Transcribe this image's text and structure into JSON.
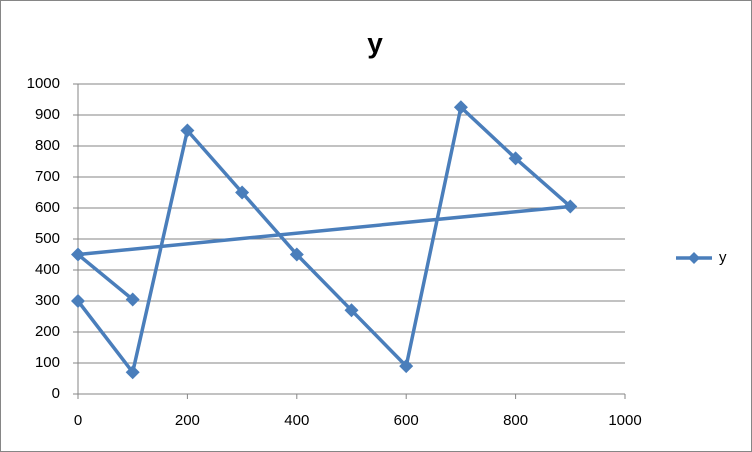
{
  "chart_data": {
    "type": "scatter",
    "title": "y",
    "lines": true,
    "markers": "diamond",
    "x": [
      0,
      100,
      200,
      300,
      400,
      500,
      600,
      700,
      800,
      900,
      0,
      100
    ],
    "series": [
      {
        "name": "y",
        "color": "#4a7ebb",
        "values": [
          300,
          70,
          850,
          650,
          450,
          270,
          90,
          925,
          760,
          605,
          450,
          305
        ]
      }
    ],
    "xlim": [
      0,
      1000
    ],
    "xticks": [
      0,
      200,
      400,
      600,
      800,
      1000
    ],
    "ylim": [
      0,
      1000
    ],
    "yticks": [
      0,
      100,
      200,
      300,
      400,
      500,
      600,
      700,
      800,
      900,
      1000
    ],
    "grid": true,
    "legend": "right"
  }
}
